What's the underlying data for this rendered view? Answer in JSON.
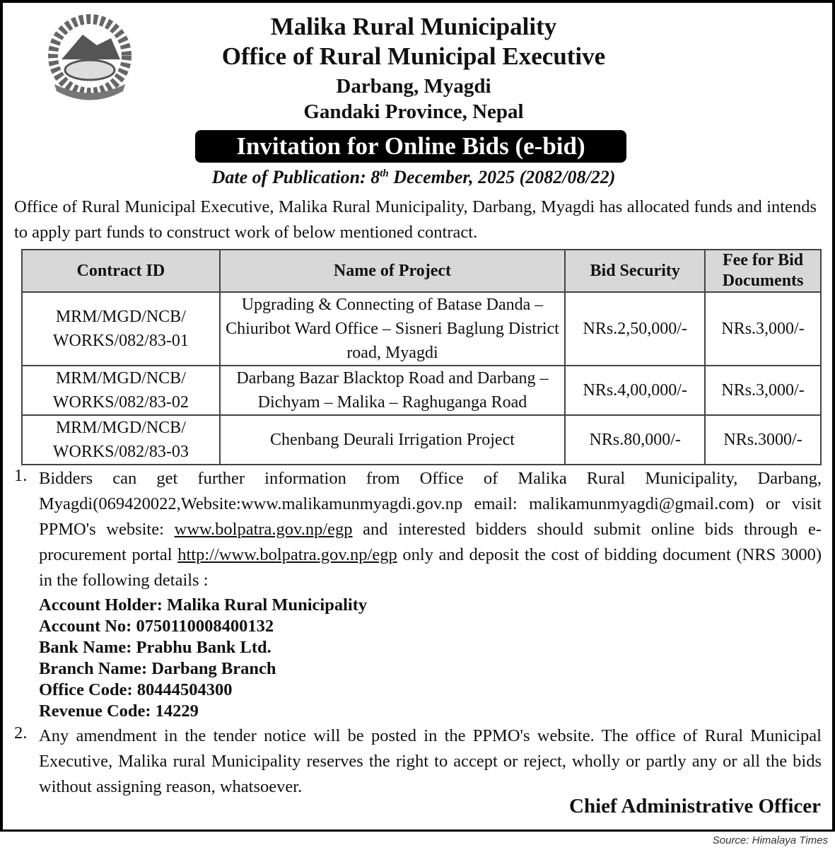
{
  "header": {
    "line1": "Malika Rural Municipality",
    "line2": "Office of Rural Municipal Executive",
    "line3": "Darbang, Myagdi",
    "line4": "Gandaki Province, Nepal",
    "banner": "Invitation for Online Bids (e-bid)",
    "date_prefix": "Date of Publication: 8",
    "date_sup": "th",
    "date_suffix": " December, 2025 (2082/08/22)"
  },
  "intro": "Office of Rural Municipal Executive, Malika Rural Municipality, Darbang, Myagdi has allocated funds and intends to apply part funds to construct work of below mentioned contract.",
  "table": {
    "headers": [
      "Contract ID",
      "Name of Project",
      "Bid Security",
      "Fee for Bid Documents"
    ],
    "rows": [
      {
        "id": "MRM/MGD/NCB/ WORKS/082/83-01",
        "project": "Upgrading & Connecting of Batase Danda – Chiuribot Ward Office – Sisneri Baglung District road, Myagdi",
        "security": "NRs.2,50,000/-",
        "fee": "NRs.3,000/-"
      },
      {
        "id": "MRM/MGD/NCB/ WORKS/082/83-02",
        "project": "Darbang Bazar Blacktop Road and Darbang – Dichyam – Malika – Raghuganga Road",
        "security": "NRs.4,00,000/-",
        "fee": "NRs.3,000/-"
      },
      {
        "id": "MRM/MGD/NCB/ WORKS/082/83-03",
        "project": "Chenbang Deurali Irrigation Project",
        "security": "NRs.80,000/-",
        "fee": "NRs.3000/-"
      }
    ]
  },
  "list": {
    "item1": {
      "num": "1.",
      "a": "Bidders can get further information from Office of Malika Rural Municipality, Darbang, Myagdi(069420022,Website:www.malikamunmyagdi.gov.np email: malikamunmyagdi@gmail.com) or visit PPMO's website: ",
      "link1": "www.bolpatra.gov.np/egp",
      "b": " and interested bidders should submit online bids through e-procurement portal ",
      "link2": "http://www.bolpatra.gov.np/egp",
      "c": " only  and deposit the cost of bidding document (NRS 3000) in the following details :"
    },
    "account": [
      "Account Holder: Malika Rural Municipality",
      "Account No: 0750110008400132",
      "Bank Name: Prabhu Bank Ltd.",
      "Branch Name: Darbang Branch",
      "Office Code: 80444504300",
      "Revenue Code: 14229"
    ],
    "item2": {
      "num": "2.",
      "text": "Any amendment in the tender notice will be posted in the PPMO's website. The office of Rural Municipal Executive, Malika rural Municipality reserves the right to accept or reject, wholly or partly any or all the bids without assigning reason, whatsoever."
    }
  },
  "signature": "Chief Administrative Officer",
  "source": "Source: Himalaya Times"
}
